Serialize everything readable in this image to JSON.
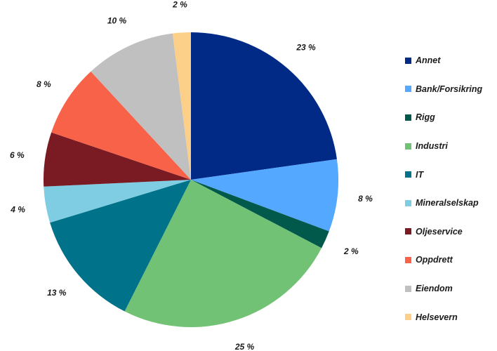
{
  "chart_data": {
    "type": "pie",
    "title": "",
    "legend_position": "right",
    "slices": [
      {
        "label": "Annet",
        "value": 23,
        "display": "23 %",
        "color": "#002a86"
      },
      {
        "label": "Bank/Forsikring",
        "value": 8,
        "display": "8 %",
        "color": "#55a8ff"
      },
      {
        "label": "Rigg",
        "value": 2,
        "display": "2 %",
        "color": "#00594a"
      },
      {
        "label": "Industri",
        "value": 25,
        "display": "25 %",
        "color": "#72c275"
      },
      {
        "label": "IT",
        "value": 13,
        "display": "13 %",
        "color": "#00738a"
      },
      {
        "label": "Mineralselskap",
        "value": 4,
        "display": "4 %",
        "color": "#7ecde3"
      },
      {
        "label": "Oljeservice",
        "value": 6,
        "display": "6 %",
        "color": "#7a1a22"
      },
      {
        "label": "Oppdrett",
        "value": 8,
        "display": "8 %",
        "color": "#f76249"
      },
      {
        "label": "Eiendom",
        "value": 10,
        "display": "10 %",
        "color": "#c0c0c0"
      },
      {
        "label": "Helsevern",
        "value": 2,
        "display": "2 %",
        "color": "#fdd089"
      }
    ]
  }
}
